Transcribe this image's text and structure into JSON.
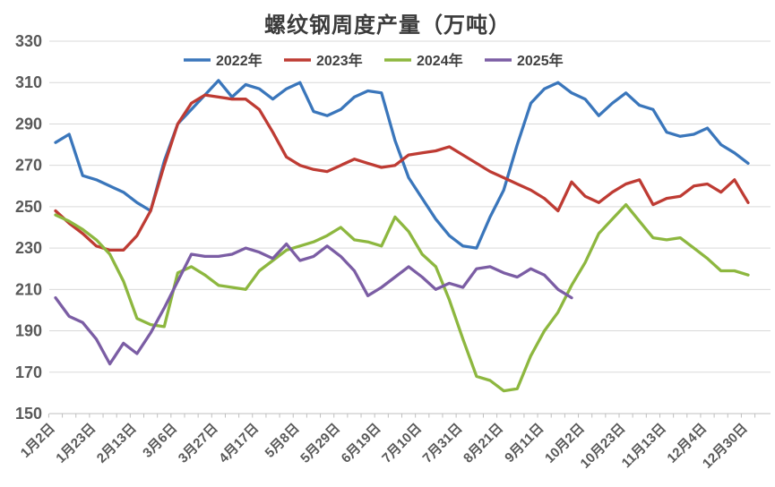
{
  "chart": {
    "title": "螺纹钢周度产量（万吨）",
    "legend": {
      "position": "top",
      "items": [
        "2022年",
        "2023年",
        "2024年",
        "2025年"
      ]
    },
    "colors": {
      "series_2022": "#3a76bb",
      "series_2023": "#be3b33",
      "series_2024": "#8db73f",
      "series_2025": "#7b5da4",
      "gridline": "#d9d9d9",
      "axis_line": "#bfbfbf",
      "axis_text": "#595959",
      "title_text": "#3b3b3b"
    }
  },
  "chart_data": {
    "type": "line",
    "title": "螺纹钢周度产量（万吨）",
    "ylim": [
      150,
      330
    ],
    "y_step": 20,
    "y_tick_labels": [
      150,
      170,
      190,
      210,
      230,
      250,
      270,
      290,
      310,
      330
    ],
    "grid": "horizontal",
    "legend_position": "top",
    "points_per_series": 52,
    "x_label_every": 3,
    "x_tick_labels": [
      "1月2日",
      "1月23日",
      "2月13日",
      "3月6日",
      "3月27日",
      "4月17日",
      "5月8日",
      "5月29日",
      "6月19日",
      "7月10日",
      "7月31日",
      "8月21日",
      "9月11日",
      "10月2日",
      "10月23日",
      "11月13日",
      "12月4日",
      "12月30日"
    ],
    "series": [
      {
        "name": "2022年",
        "color": "#3a76bb",
        "values": [
          281,
          285,
          265,
          263,
          260,
          257,
          252,
          248,
          272,
          290,
          297,
          304,
          311,
          303,
          309,
          307,
          302,
          307,
          310,
          296,
          294,
          297,
          303,
          306,
          305,
          282,
          264,
          254,
          244,
          236,
          231,
          230,
          245,
          258,
          280,
          300,
          307,
          310,
          305,
          302,
          294,
          300,
          305,
          299,
          297,
          286,
          284,
          285,
          288,
          280,
          276,
          271
        ]
      },
      {
        "name": "2023年",
        "color": "#be3b33",
        "values": [
          248,
          242,
          237,
          231,
          229,
          229,
          236,
          248,
          270,
          290,
          300,
          304,
          303,
          302,
          302,
          297,
          286,
          274,
          270,
          268,
          267,
          270,
          273,
          271,
          269,
          270,
          275,
          276,
          277,
          279,
          275,
          271,
          267,
          264,
          261,
          258,
          254,
          248,
          262,
          255,
          252,
          257,
          261,
          263,
          251,
          254,
          255,
          260,
          261,
          257,
          263,
          252
        ]
      },
      {
        "name": "2024年",
        "color": "#8db73f",
        "values": [
          246,
          243,
          239,
          234,
          227,
          214,
          196,
          193,
          192,
          218,
          221,
          217,
          212,
          211,
          210,
          219,
          224,
          229,
          231,
          233,
          236,
          240,
          234,
          233,
          231,
          245,
          238,
          227,
          221,
          205,
          186,
          168,
          166,
          161,
          162,
          178,
          190,
          199,
          212,
          223,
          237,
          244,
          251,
          243,
          235,
          234,
          235,
          230,
          225,
          219,
          219,
          217
        ]
      },
      {
        "name": "2025年",
        "color": "#7b5da4",
        "values": [
          206,
          197,
          194,
          186,
          174,
          184,
          179,
          189,
          201,
          214,
          227,
          226,
          226,
          227,
          230,
          228,
          225,
          232,
          224,
          226,
          231,
          226,
          219,
          207,
          211,
          216,
          221,
          216,
          210,
          213,
          211,
          220,
          221,
          218,
          216,
          220,
          217,
          210,
          206
        ]
      }
    ]
  }
}
